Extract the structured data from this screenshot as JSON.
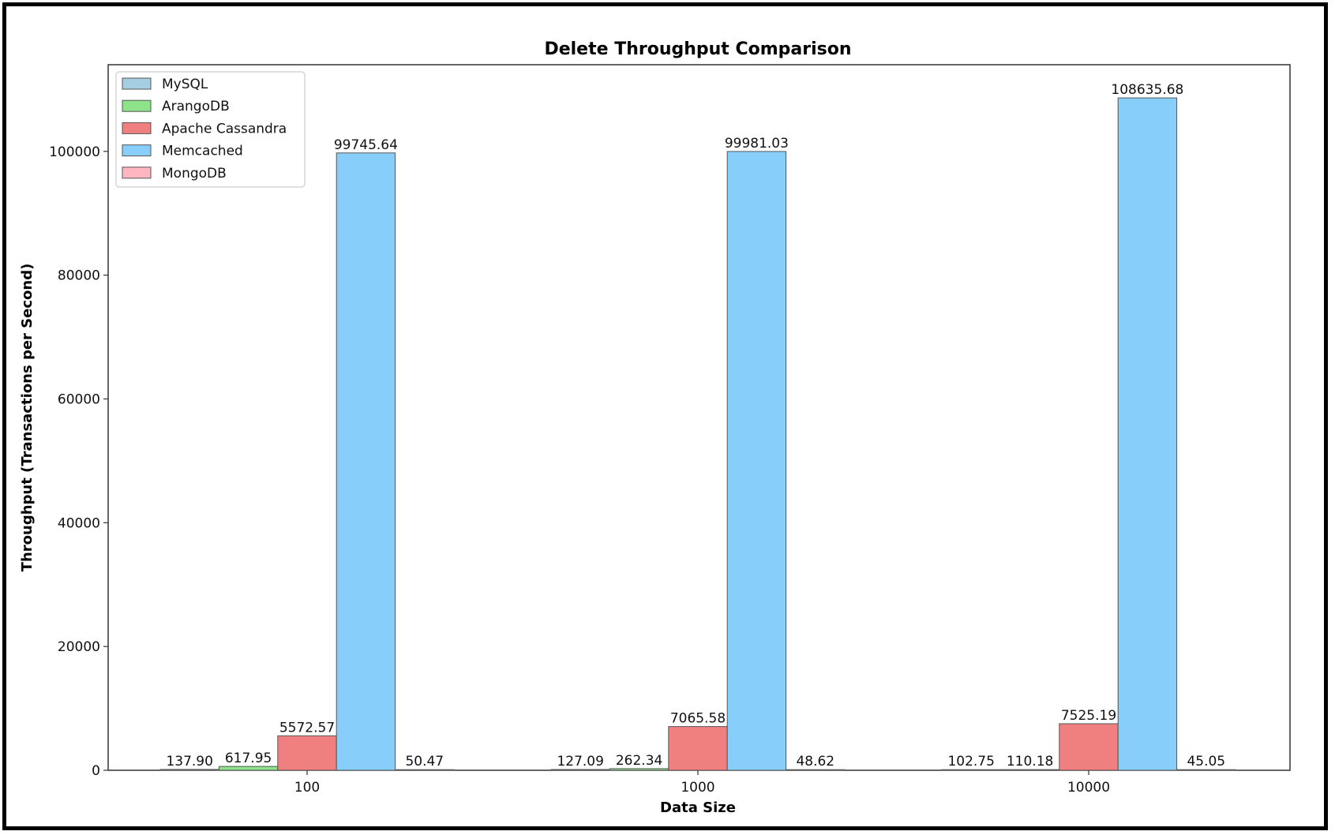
{
  "chart_data": {
    "type": "bar",
    "title": "Delete Throughput Comparison",
    "xlabel": "Data Size",
    "ylabel": "Throughput (Transactions per Second)",
    "categories": [
      "100",
      "1000",
      "10000"
    ],
    "ylim": [
      0,
      114000
    ],
    "yticks": [
      0,
      20000,
      40000,
      60000,
      80000,
      100000
    ],
    "ytick_labels": [
      "0",
      "20000",
      "40000",
      "60000",
      "80000",
      "100000"
    ],
    "legend_position": "top-left",
    "grid": false,
    "series": [
      {
        "name": "MySQL",
        "color": "#a6cee3",
        "values": [
          137.9,
          127.09,
          102.75
        ],
        "labels": [
          "137.90",
          "127.09",
          "102.75"
        ]
      },
      {
        "name": "ArangoDB",
        "color": "#8ee38a",
        "values": [
          617.95,
          262.34,
          110.18
        ],
        "labels": [
          "617.95",
          "262.34",
          "110.18"
        ]
      },
      {
        "name": "Apache Cassandra",
        "color": "#f08080",
        "values": [
          5572.57,
          7065.58,
          7525.19
        ],
        "labels": [
          "5572.57",
          "7065.58",
          "7525.19"
        ]
      },
      {
        "name": "Memcached",
        "color": "#87cefa",
        "values": [
          99745.64,
          99981.03,
          108635.68
        ],
        "labels": [
          "99745.64",
          "99981.03",
          "108635.68"
        ]
      },
      {
        "name": "MongoDB",
        "color": "#ffb6c1",
        "values": [
          50.47,
          48.62,
          45.05
        ],
        "labels": [
          "50.47",
          "48.62",
          "45.05"
        ]
      }
    ]
  }
}
